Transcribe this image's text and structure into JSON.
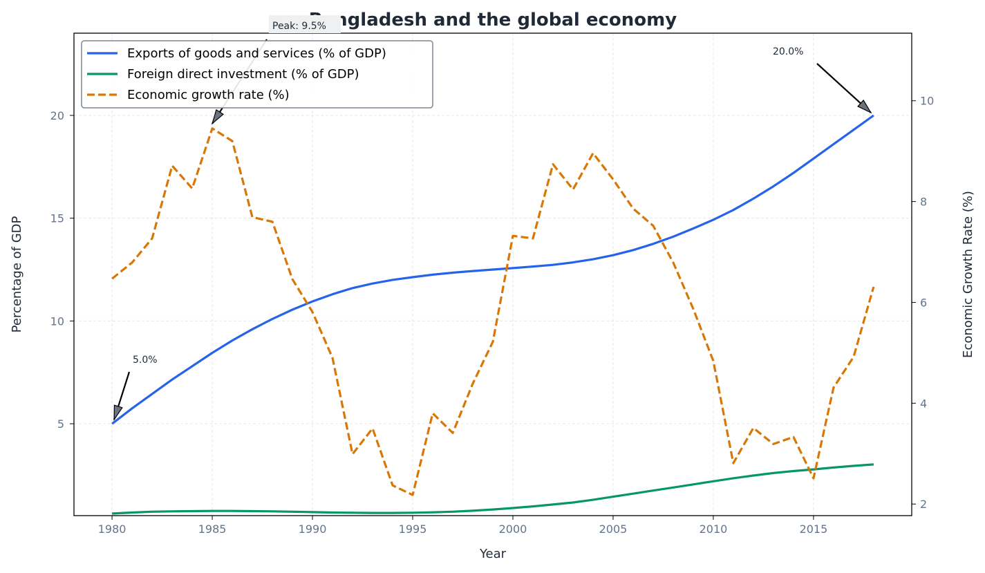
{
  "chart_data": {
    "type": "line",
    "title": "Bangladesh and the global economy",
    "xlabel": "Year",
    "ylabel": "Percentage of GDP",
    "ylabel_right": "Economic Growth Rate (%)",
    "xlim": [
      1978.1,
      2019.9
    ],
    "ylim": [
      0.53,
      24.0
    ],
    "ylim_right": [
      1.77,
      11.34
    ],
    "x_ticks": [
      1980,
      1985,
      1990,
      1995,
      2000,
      2005,
      2010,
      2015
    ],
    "y_ticks": [
      5,
      10,
      15,
      20
    ],
    "y_ticks_right": [
      2,
      4,
      6,
      8,
      10
    ],
    "grid": true,
    "legend_position": "top-left",
    "x": [
      1980,
      1981,
      1982,
      1983,
      1984,
      1985,
      1986,
      1987,
      1988,
      1989,
      1990,
      1991,
      1992,
      1993,
      1994,
      1995,
      1996,
      1997,
      1998,
      1999,
      2000,
      2001,
      2002,
      2003,
      2004,
      2005,
      2006,
      2007,
      2008,
      2009,
      2010,
      2011,
      2012,
      2013,
      2014,
      2015,
      2016,
      2017,
      2018
    ],
    "series": [
      {
        "name": "Exports of goods and services (% of GDP)",
        "axis": "left",
        "color": "#2563eb",
        "style": "solid",
        "values": [
          5.0,
          5.75,
          6.45,
          7.15,
          7.8,
          8.45,
          9.05,
          9.6,
          10.1,
          10.55,
          10.95,
          11.3,
          11.6,
          11.82,
          12.0,
          12.13,
          12.25,
          12.35,
          12.43,
          12.5,
          12.57,
          12.65,
          12.73,
          12.85,
          13.0,
          13.2,
          13.45,
          13.75,
          14.1,
          14.5,
          14.92,
          15.4,
          15.95,
          16.55,
          17.2,
          17.9,
          18.6,
          19.3,
          20.0
        ]
      },
      {
        "name": "Foreign direct investment (% of GDP)",
        "axis": "left",
        "color": "#059669",
        "style": "solid",
        "values": [
          0.63,
          0.68,
          0.72,
          0.74,
          0.75,
          0.76,
          0.76,
          0.75,
          0.74,
          0.72,
          0.7,
          0.68,
          0.67,
          0.66,
          0.66,
          0.67,
          0.69,
          0.72,
          0.77,
          0.83,
          0.9,
          0.98,
          1.07,
          1.17,
          1.3,
          1.45,
          1.6,
          1.75,
          1.9,
          2.05,
          2.2,
          2.35,
          2.48,
          2.6,
          2.7,
          2.78,
          2.87,
          2.95,
          3.02
        ]
      },
      {
        "name": "Economic growth rate (%)",
        "axis": "right",
        "color": "#d97706",
        "style": "dashed",
        "values": [
          6.47,
          6.79,
          7.27,
          8.71,
          8.26,
          9.45,
          9.2,
          7.69,
          7.6,
          6.46,
          5.81,
          4.9,
          2.99,
          3.5,
          2.37,
          2.18,
          3.8,
          3.41,
          4.39,
          5.22,
          7.32,
          7.27,
          8.74,
          8.24,
          8.96,
          8.44,
          7.86,
          7.52,
          6.79,
          5.87,
          4.84,
          2.81,
          3.51,
          3.19,
          3.33,
          2.51,
          4.31,
          4.92,
          6.31
        ]
      }
    ],
    "annotations": [
      {
        "text": "Peak: 9.5%",
        "target_x": 1985,
        "target_y": 9.45,
        "axis": "right"
      },
      {
        "text": "5.0%",
        "target_x": 1980,
        "target_y": 5.0,
        "axis": "left"
      },
      {
        "text": "20.0%",
        "target_x": 2018,
        "target_y": 20.0,
        "axis": "left"
      }
    ]
  }
}
